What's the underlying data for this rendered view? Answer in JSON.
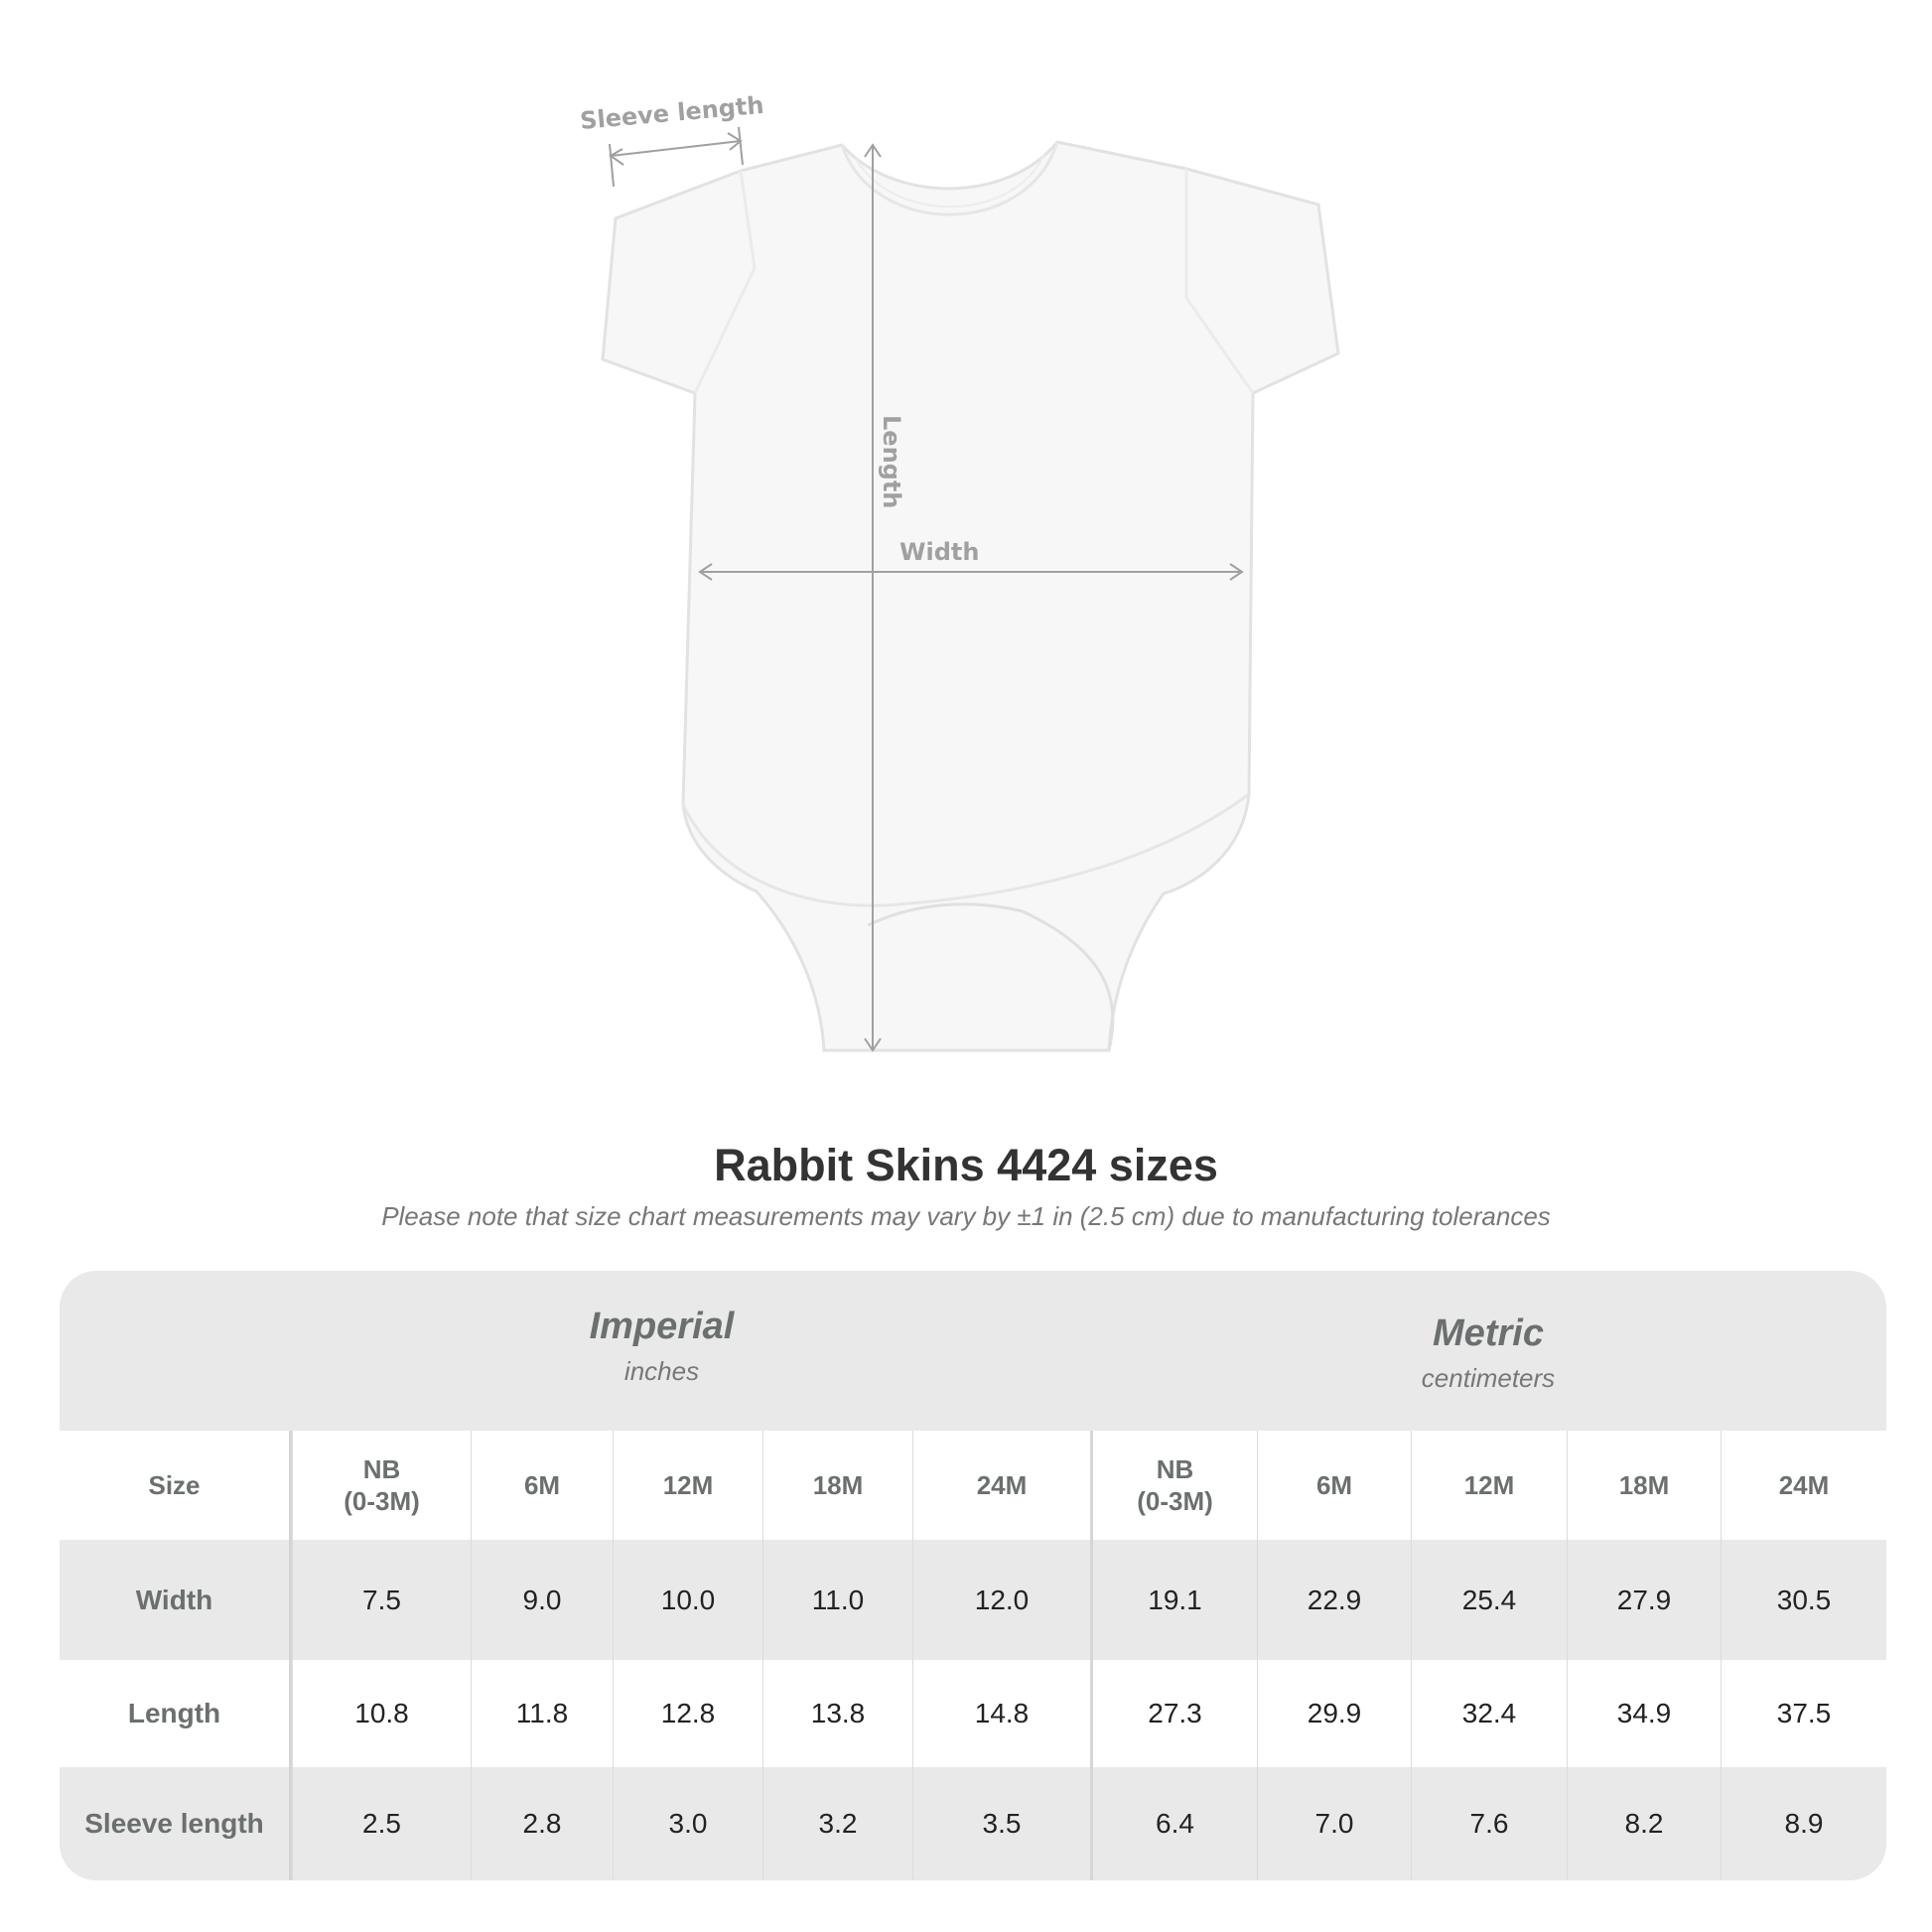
{
  "diagram": {
    "sleeve_label": "Sleeve length",
    "length_label": "Length",
    "width_label": "Width"
  },
  "title": "Rabbit Skins 4424 sizes",
  "subtitle": "Please note that size chart measurements may vary by ±1 in (2.5 cm) due to manufacturing tolerances",
  "table": {
    "imperial": {
      "name": "Imperial",
      "unit": "inches"
    },
    "metric": {
      "name": "Metric",
      "unit": "centimeters"
    },
    "size_label": "Size",
    "sizes": [
      "NB\n(0-3M)",
      "6M",
      "12M",
      "18M",
      "24M"
    ],
    "rows": [
      {
        "label": "Width",
        "imperial": [
          "7.5",
          "9.0",
          "10.0",
          "11.0",
          "12.0"
        ],
        "metric": [
          "19.1",
          "22.9",
          "25.4",
          "27.9",
          "30.5"
        ]
      },
      {
        "label": "Length",
        "imperial": [
          "10.8",
          "11.8",
          "12.8",
          "13.8",
          "14.8"
        ],
        "metric": [
          "27.3",
          "29.9",
          "32.4",
          "34.9",
          "37.5"
        ]
      },
      {
        "label": "Sleeve length",
        "imperial": [
          "2.5",
          "2.8",
          "3.0",
          "3.2",
          "3.5"
        ],
        "metric": [
          "6.4",
          "7.0",
          "7.6",
          "8.2",
          "8.9"
        ]
      }
    ]
  },
  "colors": {
    "row_shade": "#e9e9e9",
    "label_text": "#6b6f6f",
    "arrow": "#a0a0a0"
  }
}
